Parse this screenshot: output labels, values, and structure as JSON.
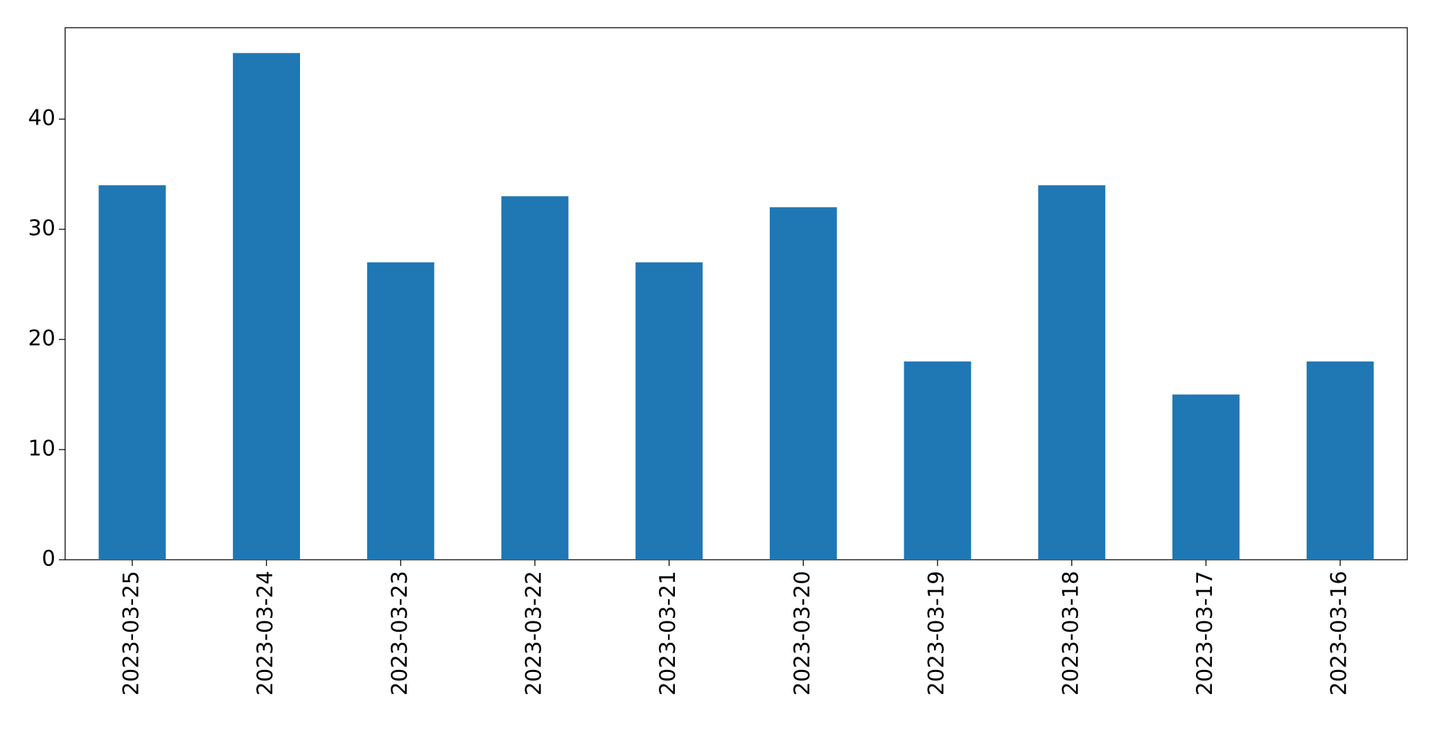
{
  "chart_data": {
    "type": "bar",
    "categories": [
      "2023-03-25",
      "2023-03-24",
      "2023-03-23",
      "2023-03-22",
      "2023-03-21",
      "2023-03-20",
      "2023-03-19",
      "2023-03-18",
      "2023-03-17",
      "2023-03-16"
    ],
    "values": [
      34,
      46,
      27,
      33,
      27,
      32,
      18,
      34,
      15,
      18
    ],
    "color": "#1f77b4",
    "ylim": [
      0,
      48.3
    ],
    "yticks": [
      0,
      10,
      20,
      30,
      40
    ],
    "grid": false
  }
}
